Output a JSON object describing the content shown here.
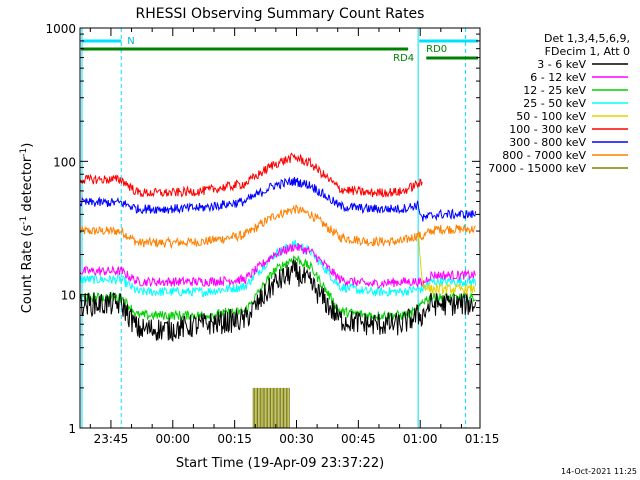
{
  "chart_data": {
    "type": "line",
    "title": "RHESSI Observing Summary Count Rates",
    "xlabel": "Start Time (19-Apr-09 23:37:22)",
    "ylabel_parts": [
      "Count Rate (s",
      "-1",
      " detector",
      "-1",
      ")"
    ],
    "yscale": "log",
    "ylim": [
      1,
      1000
    ],
    "xlim_min": [
      0,
      97
    ],
    "x_ticks": [
      {
        "m": 7.5,
        "label": "23:45"
      },
      {
        "m": 22.5,
        "label": "00:00"
      },
      {
        "m": 37.5,
        "label": "00:15"
      },
      {
        "m": 52.5,
        "label": "00:30"
      },
      {
        "m": 67.5,
        "label": "00:45"
      },
      {
        "m": 82.5,
        "label": "01:00"
      },
      {
        "m": 97.5,
        "label": "01:15"
      }
    ],
    "y_ticks": [
      {
        "v": 1,
        "label": "1"
      },
      {
        "v": 10,
        "label": "10"
      },
      {
        "v": 100,
        "label": "100"
      },
      {
        "v": 1000,
        "label": "1000"
      }
    ],
    "legend_header": [
      "Det 1,3,4,5,6,9,",
      "FDecim 1, Att 0"
    ],
    "series": [
      {
        "name": "3 - 6 keV",
        "color": "#000000",
        "x": [
          0,
          10,
          14,
          22,
          30,
          40,
          47,
          52,
          56,
          63,
          70,
          78,
          82,
          83,
          85,
          87,
          96
        ],
        "values": [
          8.5,
          8.5,
          5.5,
          5.5,
          6,
          6.5,
          12,
          15,
          12,
          6.5,
          6,
          6,
          7,
          7,
          8.5,
          8.5,
          8.5
        ]
      },
      {
        "name": "6 - 12 keV",
        "color": "#ff00ff",
        "x": [
          0,
          10,
          14,
          22,
          30,
          40,
          47,
          52,
          56,
          63,
          70,
          78,
          82,
          83,
          85,
          87,
          96
        ],
        "values": [
          15,
          15,
          12.5,
          12.5,
          12.5,
          13,
          20,
          23,
          21,
          13,
          12,
          12.5,
          12.5,
          12,
          14,
          14,
          14
        ]
      },
      {
        "name": "12 - 25 keV",
        "color": "#00d000",
        "x": [
          0,
          10,
          14,
          22,
          30,
          40,
          47,
          52,
          56,
          63,
          70,
          78,
          82,
          83,
          85,
          87,
          96
        ],
        "values": [
          9.5,
          9.5,
          7,
          7,
          7,
          7.5,
          15,
          19,
          16,
          7.5,
          7,
          7,
          7.5,
          9,
          9.5,
          9.5,
          9.5
        ]
      },
      {
        "name": "25 - 50 keV",
        "color": "#00ffff",
        "x": [
          0,
          10,
          14,
          22,
          30,
          40,
          47,
          52,
          56,
          63,
          70,
          78,
          82,
          83,
          85,
          87,
          96
        ],
        "values": [
          13,
          13,
          10.5,
          10.5,
          10.5,
          11.5,
          20,
          24,
          21,
          11.5,
          10.5,
          10.5,
          11,
          11,
          12.5,
          12.5,
          12.5
        ]
      },
      {
        "name": "50 - 100 keV",
        "color": "#e8d000",
        "x": [
          82,
          83,
          85,
          87,
          96
        ],
        "values": [
          30,
          12,
          11,
          11,
          11
        ]
      },
      {
        "name": "100 - 300 keV",
        "color": "#ff0000",
        "x": [
          0,
          10,
          14,
          22,
          30,
          40,
          47,
          52,
          56,
          63,
          70,
          78,
          82,
          83
        ],
        "values": [
          73,
          73,
          58,
          58,
          60,
          68,
          95,
          108,
          96,
          62,
          58,
          59,
          68,
          68
        ]
      },
      {
        "name": "300 - 800 keV",
        "color": "#0000ff",
        "x": [
          0,
          10,
          14,
          22,
          30,
          40,
          47,
          52,
          56,
          63,
          70,
          78,
          82,
          83,
          85,
          87,
          96
        ],
        "values": [
          49,
          49,
          44,
          44,
          45,
          50,
          66,
          71,
          66,
          46,
          44,
          44,
          47,
          37,
          39,
          40,
          40
        ]
      },
      {
        "name": "800 - 7000 keV",
        "color": "#ff8000",
        "x": [
          0,
          10,
          14,
          22,
          30,
          40,
          47,
          52,
          56,
          63,
          70,
          78,
          82,
          83,
          85,
          87,
          96
        ],
        "values": [
          30,
          30,
          24.5,
          24.5,
          25,
          28,
          39,
          44,
          40,
          27,
          25,
          25,
          28,
          27,
          30,
          31,
          31
        ]
      },
      {
        "name": "7000 - 15000 keV",
        "color": "#808000",
        "x": [
          42,
          43,
          50,
          51
        ],
        "values": [
          2,
          2,
          2,
          2
        ]
      }
    ],
    "annotations": [
      {
        "id": "n",
        "text": "N",
        "color": "#00e0ff"
      },
      {
        "id": "rd0",
        "text": "RD0",
        "color": "#008000"
      },
      {
        "id": "rd4",
        "text": "RD4",
        "color": "#008000"
      }
    ],
    "footer_date": "14-Oct-2021 11:25"
  }
}
